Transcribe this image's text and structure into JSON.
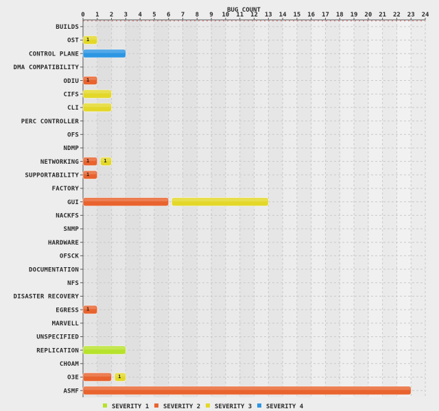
{
  "chart_data": {
    "type": "bar",
    "orientation": "horizontal",
    "title": "",
    "xlabel": "BUG COUNT",
    "ylabel": "",
    "xlim": [
      0,
      24
    ],
    "xticks": [
      0,
      1,
      2,
      3,
      4,
      5,
      6,
      7,
      8,
      9,
      10,
      11,
      12,
      13,
      14,
      15,
      16,
      17,
      18,
      19,
      20,
      21,
      22,
      23,
      24
    ],
    "grid": true,
    "legend_position": "bottom",
    "categories": [
      "BUILDS",
      "OST",
      "CONTROL PLANE",
      "DMA COMPATIBILITY",
      "ODIU",
      "CIFS",
      "CLI",
      "PERC CONTROLLER",
      "OFS",
      "NDMP",
      "NETWORKING",
      "SUPPORTABILITY",
      "FACTORY",
      "GUI",
      "NACKFS",
      "SNMP",
      "HARDWARE",
      "OFSCK",
      "DOCUMENTATION",
      "NFS",
      "DISASTER RECOVERY",
      "EGRESS",
      "MARVELL",
      "UNSPECIFIED",
      "REPLICATION",
      "CHOAM",
      "O3E",
      "ASMF"
    ],
    "series": [
      {
        "name": "SEVERITY 1",
        "color": "#b7e22c",
        "values": [
          0,
          0,
          0,
          0,
          0,
          0,
          0,
          0,
          0,
          0,
          0,
          0,
          0,
          0,
          0,
          0,
          0,
          0,
          0,
          0,
          0,
          0,
          0,
          0,
          3,
          0,
          0,
          0
        ]
      },
      {
        "name": "SEVERITY 2",
        "color": "#e8632e",
        "values": [
          0,
          0,
          0,
          0,
          1,
          0,
          0,
          0,
          0,
          0,
          1,
          1,
          0,
          6,
          0,
          0,
          0,
          0,
          0,
          0,
          0,
          1,
          0,
          0,
          0,
          0,
          2,
          23
        ]
      },
      {
        "name": "SEVERITY 3",
        "color": "#e3d829",
        "values": [
          0,
          1,
          0,
          0,
          0,
          2,
          2,
          0,
          0,
          0,
          1,
          0,
          0,
          7,
          0,
          0,
          0,
          0,
          0,
          0,
          0,
          0,
          0,
          0,
          0,
          0,
          1,
          0
        ]
      },
      {
        "name": "SEVERITY 4",
        "color": "#2d96e3",
        "values": [
          0,
          0,
          3,
          0,
          0,
          0,
          0,
          0,
          0,
          0,
          0,
          0,
          0,
          0,
          0,
          0,
          0,
          0,
          0,
          0,
          0,
          0,
          0,
          0,
          0,
          0,
          0,
          0
        ]
      }
    ],
    "data_labels": [
      {
        "category": "OST",
        "series": "SEVERITY 3",
        "text": "1"
      },
      {
        "category": "ODIU",
        "series": "SEVERITY 2",
        "text": "1"
      },
      {
        "category": "NETWORKING",
        "series": "SEVERITY 2",
        "text": "1"
      },
      {
        "category": "NETWORKING",
        "series": "SEVERITY 3",
        "text": "1"
      },
      {
        "category": "SUPPORTABILITY",
        "series": "SEVERITY 2",
        "text": "1"
      },
      {
        "category": "EGRESS",
        "series": "SEVERITY 2",
        "text": "1"
      },
      {
        "category": "O3E",
        "series": "SEVERITY 3",
        "text": "1"
      }
    ]
  }
}
